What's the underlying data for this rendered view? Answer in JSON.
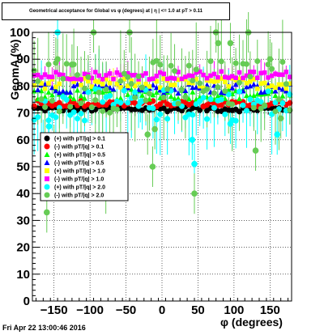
{
  "title": "Geometrical acceptance for Global vs φ (degrees) at | η | <= 1.0 at pT > 0.11",
  "timestamp": "Fri Apr 22 13:00:46 2016",
  "chart_data": {
    "type": "scatter",
    "xlabel": "φ (degrees)",
    "ylabel": "GeomA (%)",
    "xlim": [
      -180,
      180
    ],
    "ylim": [
      0,
      100
    ],
    "x_ticks": [
      -150,
      -100,
      -50,
      0,
      50,
      100,
      150
    ],
    "x_tick_labels": [
      "−150",
      "−100",
      "−50",
      "0",
      "50",
      "100",
      "150"
    ],
    "y_ticks": [
      0,
      10,
      20,
      30,
      40,
      50,
      60,
      70,
      80,
      90,
      100
    ],
    "y_tick_labels": [
      "0",
      "10",
      "20",
      "30",
      "40",
      "50",
      "60",
      "70",
      "80",
      "90",
      "100"
    ],
    "grid": true,
    "legend_position": "left-middle",
    "series": [
      {
        "name": "(+) with pT/|q| > 0.1",
        "color": "#000000",
        "marker": "circle",
        "mean": 71.5,
        "spread": 1.0,
        "err": 2
      },
      {
        "name": "(-) with pT/|q| > 0.1",
        "color": "#ff0000",
        "marker": "circle",
        "mean": 73.5,
        "spread": 1.2,
        "err": 2
      },
      {
        "name": "(+) with pT/|q| > 0.5",
        "color": "#00ff00",
        "marker": "triangle",
        "mean": 77.0,
        "spread": 2.0,
        "err": 3
      },
      {
        "name": "(-) with pT/|q| > 0.5",
        "color": "#0000ff",
        "marker": "triangle",
        "mean": 79.0,
        "spread": 2.0,
        "err": 3
      },
      {
        "name": "(+) with pT/|q| > 1.0",
        "color": "#ffff00",
        "marker": "square",
        "mean": 81.0,
        "spread": 2.0,
        "err": 4
      },
      {
        "name": "(-) with pT/|q| > 1.0",
        "color": "#ff00ff",
        "marker": "square",
        "mean": 84.0,
        "spread": 1.5,
        "err": 4
      },
      {
        "name": "(+) with pT/|q| > 2.0",
        "color": "#00ffff",
        "marker": "circle",
        "mean": 73.0,
        "spread": 6.0,
        "err": 12
      },
      {
        "name": "(-) with pT/|q| > 2.0",
        "color": "#66cc55",
        "marker": "circle",
        "mean": 80.0,
        "spread": 10.0,
        "err": 15
      }
    ],
    "outliers": [
      {
        "series": 6,
        "x": -165,
        "y": 60
      },
      {
        "series": 6,
        "x": -157,
        "y": 65
      },
      {
        "series": 6,
        "x": -145,
        "y": 100
      },
      {
        "series": 6,
        "x": -30,
        "y": 74
      },
      {
        "series": 6,
        "x": 42,
        "y": 60
      },
      {
        "series": 6,
        "x": 45,
        "y": 51
      },
      {
        "series": 6,
        "x": 95,
        "y": 66
      },
      {
        "series": 6,
        "x": 160,
        "y": 62
      },
      {
        "series": 7,
        "x": -160,
        "y": 33
      },
      {
        "series": 7,
        "x": -150,
        "y": 58
      },
      {
        "series": 7,
        "x": -145,
        "y": 90
      },
      {
        "series": 7,
        "x": -125,
        "y": 88
      },
      {
        "series": 7,
        "x": -95,
        "y": 100
      },
      {
        "series": 7,
        "x": -78,
        "y": 40
      },
      {
        "series": 7,
        "x": -75,
        "y": 46
      },
      {
        "series": 7,
        "x": -45,
        "y": 100
      },
      {
        "series": 7,
        "x": -20,
        "y": 62
      },
      {
        "series": 7,
        "x": -13,
        "y": 50
      },
      {
        "series": 7,
        "x": -10,
        "y": 64
      },
      {
        "series": 7,
        "x": 45,
        "y": 40
      },
      {
        "series": 7,
        "x": 75,
        "y": 100
      },
      {
        "series": 7,
        "x": 78,
        "y": 96
      },
      {
        "series": 7,
        "x": 95,
        "y": 96
      },
      {
        "series": 7,
        "x": 120,
        "y": 100
      },
      {
        "series": 7,
        "x": 130,
        "y": 56
      },
      {
        "series": 7,
        "x": 150,
        "y": 90
      },
      {
        "series": 7,
        "x": 165,
        "y": 68
      }
    ]
  }
}
